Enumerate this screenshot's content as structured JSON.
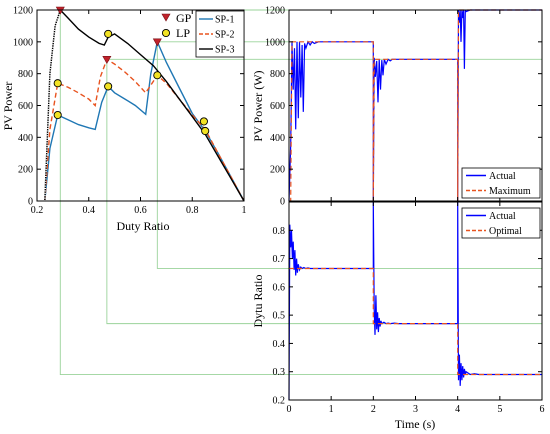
{
  "chart_data": [
    {
      "type": "line",
      "title": "",
      "xlabel": "Duty Ratio",
      "ylabel": "PV Power",
      "xlim": [
        0.2,
        1
      ],
      "ylim": [
        0,
        1200
      ],
      "xticks": [
        0.2,
        0.4,
        0.6,
        0.8,
        1
      ],
      "xtick_labels": [
        "0.2",
        "0.4",
        "0.6",
        "0.8",
        "1"
      ],
      "yticks": [
        0,
        200,
        400,
        600,
        800,
        1000,
        1200
      ],
      "ytick_labels": [
        "0",
        "200",
        "400",
        "600",
        "800",
        "1000",
        "1200"
      ],
      "grid": false,
      "legend_placement": "top-right",
      "series": [
        {
          "name": "SP-1",
          "color": "#1f77b4",
          "style": "solid",
          "x": [
            0.23,
            0.25,
            0.28,
            0.32,
            0.36,
            0.4,
            0.425,
            0.45,
            0.475,
            0.5,
            0.54,
            0.58,
            0.62,
            0.64,
            0.665,
            0.7,
            0.75,
            0.8,
            0.85,
            0.9,
            0.95,
            1.0
          ],
          "y": [
            0,
            330,
            540,
            510,
            480,
            460,
            450,
            620,
            720,
            680,
            640,
            600,
            545,
            800,
            1000,
            870,
            710,
            550,
            440,
            300,
            150,
            0
          ]
        },
        {
          "name": "SP-2",
          "color": "#e8531f",
          "style": "dashed",
          "x": [
            0.23,
            0.25,
            0.28,
            0.32,
            0.36,
            0.4,
            0.425,
            0.445,
            0.47,
            0.5,
            0.54,
            0.58,
            0.62,
            0.645,
            0.665,
            0.7,
            0.75,
            0.8,
            0.85,
            0.9,
            0.95,
            1.0
          ],
          "y": [
            0,
            450,
            740,
            715,
            680,
            640,
            600,
            780,
            890,
            860,
            810,
            750,
            680,
            740,
            790,
            740,
            640,
            540,
            450,
            300,
            150,
            0
          ]
        },
        {
          "name": "SP-3",
          "color": "#000000",
          "style": "solid",
          "x": [
            0.23,
            0.25,
            0.27,
            0.29,
            0.32,
            0.36,
            0.4,
            0.44,
            0.46,
            0.475,
            0.5,
            0.55,
            0.6,
            0.65,
            0.7,
            0.75,
            0.8,
            0.85,
            0.9,
            0.95,
            1.0
          ],
          "y": [
            0,
            800,
            1100,
            1200,
            1150,
            1080,
            1030,
            990,
            980,
            1030,
            1050,
            990,
            920,
            850,
            750,
            640,
            530,
            420,
            280,
            140,
            0
          ]
        }
      ],
      "markers": [
        {
          "type": "GP",
          "x": [
            0.29,
            0.47,
            0.665
          ],
          "y": [
            1200,
            890,
            1000
          ]
        },
        {
          "type": "LP",
          "x": [
            0.28,
            0.28,
            0.475,
            0.475,
            0.665,
            0.845,
            0.85
          ],
          "y": [
            540,
            740,
            720,
            1050,
            790,
            500,
            440
          ]
        }
      ],
      "legend_markers": [
        "GP",
        "LP"
      ]
    },
    {
      "type": "line",
      "title": "",
      "xlabel": "",
      "ylabel": "PV Power (W)",
      "xlim": [
        0,
        6
      ],
      "ylim": [
        0,
        1200
      ],
      "yticks": [
        0,
        200,
        400,
        600,
        800,
        1000,
        1200
      ],
      "ytick_labels": [
        "0",
        "200",
        "400",
        "600",
        "800",
        "1000",
        "1200"
      ],
      "grid": false,
      "legend_placement": "bottom-right",
      "series": [
        {
          "name": "Actual",
          "color": "#0000ff",
          "style": "solid",
          "x": [
            0,
            0.04,
            0.07,
            0.1,
            0.13,
            0.16,
            0.19,
            0.22,
            0.25,
            0.28,
            0.31,
            0.34,
            0.37,
            0.4,
            0.45,
            0.5,
            0.55,
            0.6,
            0.7,
            0.8,
            1.0,
            1.5,
            1.99,
            2.0,
            2.0,
            2.02,
            2.05,
            2.08,
            2.11,
            2.14,
            2.17,
            2.2,
            2.23,
            2.26,
            2.3,
            2.35,
            2.4,
            2.45,
            2.5,
            2.6,
            3.0,
            3.5,
            3.99,
            4.0,
            4.0,
            4.02,
            4.04,
            4.06,
            4.08,
            4.1,
            4.12,
            4.14,
            4.16,
            4.18,
            4.2,
            4.3,
            4.5,
            5.0,
            6.0
          ],
          "y": [
            0,
            350,
            1000,
            700,
            960,
            450,
            1000,
            520,
            1000,
            650,
            980,
            560,
            990,
            960,
            1000,
            980,
            1000,
            990,
            1000,
            1000,
            1000,
            1000,
            1000,
            1000,
            0,
            900,
            780,
            880,
            620,
            890,
            700,
            885,
            790,
            890,
            860,
            890,
            880,
            890,
            890,
            890,
            890,
            890,
            890,
            890,
            0,
            1200,
            1120,
            1200,
            1000,
            1200,
            1150,
            1200,
            830,
            1200,
            1190,
            1200,
            1200,
            1200,
            1200
          ]
        },
        {
          "name": "Maximum",
          "color": "#e8531f",
          "style": "dashed",
          "x": [
            0,
            0.04,
            0.07,
            2.0,
            2.0,
            2.02,
            4.0,
            4.0,
            4.02,
            6.0
          ],
          "y": [
            0,
            0,
            1000,
            1000,
            0,
            890,
            890,
            0,
            1200,
            1200
          ]
        }
      ]
    },
    {
      "type": "line",
      "title": "",
      "xlabel": "Time (s)",
      "ylabel": "Dytu Ratio",
      "xlim": [
        0,
        6
      ],
      "ylim": [
        0.2,
        0.9
      ],
      "xticks": [
        0,
        1,
        2,
        3,
        4,
        5,
        6
      ],
      "xtick_labels": [
        "0",
        "1",
        "2",
        "3",
        "4",
        "5",
        "6"
      ],
      "yticks": [
        0.2,
        0.3,
        0.4,
        0.5,
        0.6,
        0.7,
        0.8
      ],
      "ytick_labels": [
        "0.2",
        "0.3",
        "0.4",
        "0.5",
        "0.6",
        "0.7",
        "0.8"
      ],
      "grid": false,
      "legend_placement": "top-right",
      "series": [
        {
          "name": "Actual",
          "color": "#0000ff",
          "style": "solid",
          "x": [
            0,
            0.02,
            0.04,
            0.06,
            0.08,
            0.1,
            0.12,
            0.14,
            0.16,
            0.18,
            0.2,
            0.22,
            0.25,
            0.28,
            0.31,
            0.35,
            0.4,
            0.45,
            0.5,
            0.6,
            0.8,
            1.0,
            1.5,
            1.99,
            2.0,
            2.0,
            2.02,
            2.04,
            2.06,
            2.08,
            2.1,
            2.12,
            2.14,
            2.16,
            2.18,
            2.2,
            2.25,
            2.3,
            2.35,
            2.4,
            2.5,
            2.6,
            3.0,
            3.5,
            3.99,
            4.0,
            4.0,
            4.02,
            4.04,
            4.06,
            4.08,
            4.1,
            4.12,
            4.14,
            4.16,
            4.18,
            4.2,
            4.25,
            4.3,
            4.4,
            4.5,
            5.0,
            6.0
          ],
          "y": [
            0.2,
            0.82,
            0.74,
            0.8,
            0.7,
            0.76,
            0.66,
            0.73,
            0.64,
            0.7,
            0.65,
            0.68,
            0.66,
            0.67,
            0.665,
            0.668,
            0.665,
            0.667,
            0.665,
            0.665,
            0.665,
            0.665,
            0.665,
            0.665,
            0.665,
            0.9,
            0.52,
            0.43,
            0.57,
            0.45,
            0.51,
            0.44,
            0.49,
            0.46,
            0.48,
            0.47,
            0.475,
            0.47,
            0.472,
            0.47,
            0.472,
            0.47,
            0.47,
            0.47,
            0.47,
            0.47,
            0.9,
            0.27,
            0.36,
            0.25,
            0.33,
            0.27,
            0.32,
            0.28,
            0.31,
            0.29,
            0.3,
            0.295,
            0.29,
            0.293,
            0.29,
            0.29,
            0.29
          ]
        },
        {
          "name": "Optimal",
          "color": "#e8531f",
          "style": "dashed",
          "x": [
            0,
            0.1,
            2.0,
            2.0,
            4.0,
            4.0,
            6.0
          ],
          "y": [
            0.665,
            0.665,
            0.665,
            0.47,
            0.47,
            0.29,
            0.29
          ]
        }
      ]
    }
  ]
}
